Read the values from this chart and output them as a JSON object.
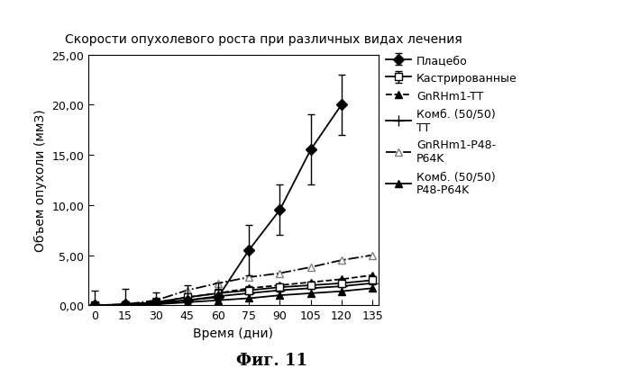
{
  "title": "Скорости опухолевого роста при различных видах лечения",
  "xlabel": "Время (дни)",
  "ylabel": "Объем опухоли (ммЗ)",
  "caption": "Фиг. 11",
  "x": [
    0,
    15,
    30,
    45,
    60,
    75,
    90,
    105,
    120,
    135
  ],
  "placebo": {
    "x": [
      0,
      15,
      30,
      45,
      60,
      75,
      90,
      105,
      120
    ],
    "y": [
      0.0,
      0.1,
      0.3,
      0.5,
      0.8,
      5.5,
      9.5,
      15.5,
      20.0
    ],
    "yerr": [
      1.5,
      1.5,
      1.0,
      1.5,
      1.5,
      2.5,
      2.5,
      3.5,
      3.0
    ]
  },
  "kastrir": {
    "x": [
      0,
      15,
      30,
      45,
      60,
      75,
      90,
      105,
      120,
      135
    ],
    "y": [
      0.0,
      0.05,
      0.3,
      0.8,
      1.2,
      1.5,
      1.8,
      2.0,
      2.2,
      2.5
    ],
    "yerr": [
      0.2,
      0.3,
      0.4,
      0.4,
      0.4,
      0.4,
      0.4,
      0.4,
      0.4,
      0.4
    ]
  },
  "gnrhm1tt": {
    "x": [
      0,
      15,
      30,
      45,
      60,
      75,
      90,
      105,
      120,
      135
    ],
    "y": [
      0.0,
      0.05,
      0.3,
      0.8,
      1.2,
      1.7,
      2.0,
      2.3,
      2.6,
      3.0
    ]
  },
  "kombtt": {
    "x": [
      0,
      15,
      30,
      45,
      60,
      75,
      90,
      105,
      120,
      135
    ],
    "y": [
      0.0,
      0.0,
      0.15,
      0.5,
      0.9,
      1.2,
      1.5,
      1.7,
      1.9,
      2.2
    ]
  },
  "gnrhm1p48": {
    "x": [
      0,
      15,
      30,
      45,
      60,
      75,
      90,
      105,
      120,
      135
    ],
    "y": [
      0.0,
      0.1,
      0.5,
      1.5,
      2.2,
      2.8,
      3.2,
      3.8,
      4.5,
      5.0
    ]
  },
  "kombp48": {
    "x": [
      0,
      15,
      30,
      45,
      60,
      75,
      90,
      105,
      120,
      135
    ],
    "y": [
      0.0,
      0.0,
      0.1,
      0.3,
      0.5,
      0.7,
      1.0,
      1.2,
      1.4,
      1.7
    ]
  },
  "ylim": [
    0,
    25
  ],
  "yticks": [
    0.0,
    5.0,
    10.0,
    15.0,
    20.0,
    25.0
  ],
  "ytick_labels": [
    "0,00",
    "5,00",
    "10,00",
    "15,00",
    "20,00",
    "25,00"
  ],
  "xticks": [
    0,
    15,
    30,
    45,
    60,
    75,
    90,
    105,
    120,
    135
  ],
  "background_color": "#ffffff",
  "title_fontsize": 10,
  "axis_label_fontsize": 10,
  "tick_fontsize": 9,
  "legend_fontsize": 9,
  "caption_fontsize": 13
}
